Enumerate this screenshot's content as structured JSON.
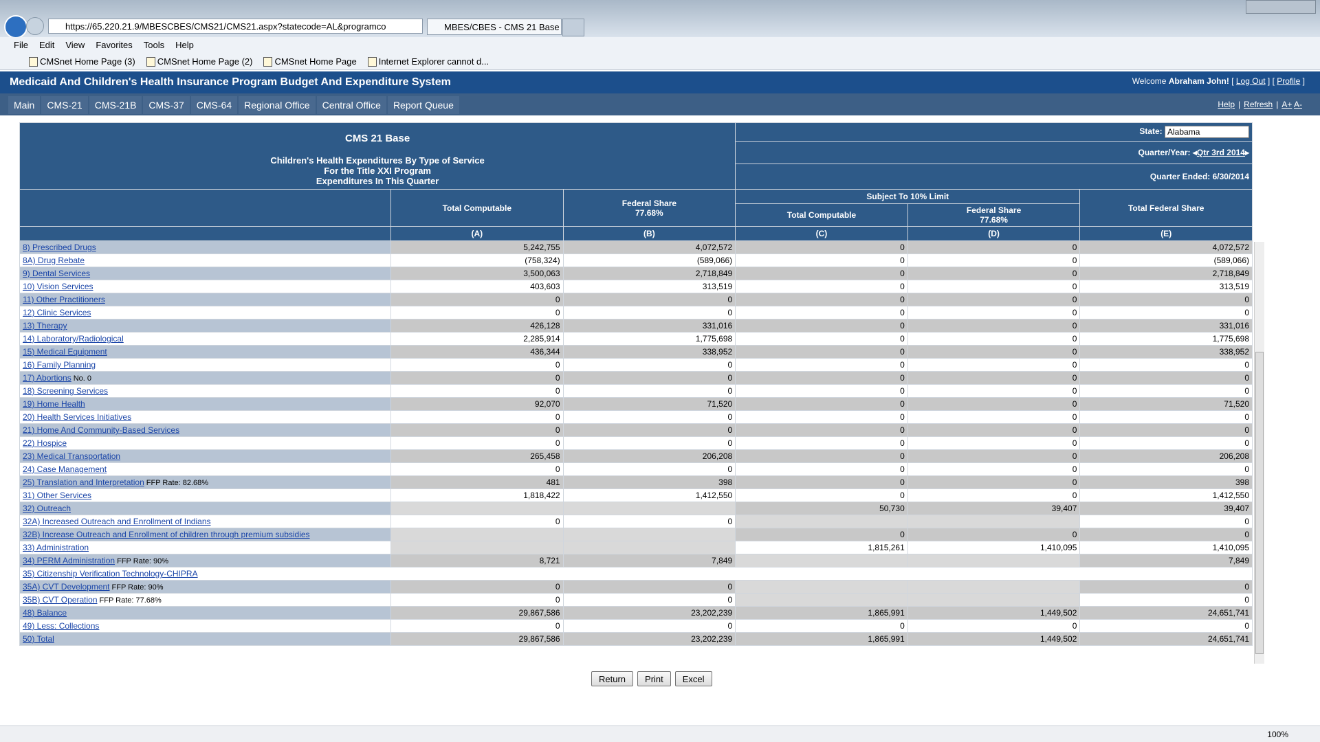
{
  "browser": {
    "url": "https://65.220.21.9/MBESCBES/CMS21/CMS21.aspx?statecode=AL&programco",
    "tab_title": "MBES/CBES - CMS 21 Base",
    "menu": [
      "File",
      "Edit",
      "View",
      "Favorites",
      "Tools",
      "Help"
    ],
    "favorites": [
      "CMSnet Home Page (3)",
      "CMSnet Home Page (2)",
      "CMSnet Home Page",
      "Internet Explorer cannot d..."
    ],
    "zoom": "100%"
  },
  "header": {
    "title": "Medicaid And Children's Health Insurance Program Budget And Expenditure System",
    "welcome": "Welcome",
    "user": "Abraham John!",
    "bracket_open": "[",
    "bracket_close": "]",
    "links": [
      "Log Out",
      "Profile"
    ]
  },
  "nav": {
    "items": [
      "Main",
      "CMS-21",
      "CMS-21B",
      "CMS-37",
      "CMS-64",
      "Regional Office",
      "Central Office",
      "Report Queue"
    ],
    "right_links": [
      "Help",
      "Refresh",
      "A+",
      "A-"
    ],
    "separator": "|"
  },
  "form": {
    "title": "CMS 21 Base",
    "subtitle_lines": [
      "Children's Health Expenditures By Type of Service",
      "For the Title XXI Program",
      "Expenditures In This Quarter"
    ],
    "state_label": "State:",
    "state": "Alabama",
    "quarter_label": "Quarter/Year:",
    "quarter": "Qtr 3rd 2014",
    "quarter_ended": "Quarter Ended: 6/30/2014"
  },
  "table": {
    "group_header": "Subject To 10% Limit",
    "columns": [
      {
        "title": "Total Computable",
        "letter": "(A)"
      },
      {
        "title": "Federal Share",
        "rate": "77.68%",
        "letter": "(B)"
      },
      {
        "title": "Total Computable",
        "letter": "(C)"
      },
      {
        "title": "Federal Share",
        "rate": "77.68%",
        "letter": "(D)"
      },
      {
        "title": "Total Federal Share",
        "letter": "(E)"
      }
    ],
    "rows": [
      {
        "label": "8) Prescribed Drugs",
        "cells": [
          "5,242,755",
          "4,072,572",
          "0",
          "0",
          "4,072,572"
        ]
      },
      {
        "label": "8A) Drug Rebate",
        "cells": [
          "(758,324)",
          "(589,066)",
          "0",
          "0",
          "(589,066)"
        ]
      },
      {
        "label": "9) Dental Services",
        "cells": [
          "3,500,063",
          "2,718,849",
          "0",
          "0",
          "2,718,849"
        ]
      },
      {
        "label": "10) Vision Services",
        "cells": [
          "403,603",
          "313,519",
          "0",
          "0",
          "313,519"
        ]
      },
      {
        "label": "11) Other Practitioners",
        "cells": [
          "0",
          "0",
          "0",
          "0",
          "0"
        ]
      },
      {
        "label": "12) Clinic Services",
        "cells": [
          "0",
          "0",
          "0",
          "0",
          "0"
        ]
      },
      {
        "label": "13) Therapy",
        "cells": [
          "426,128",
          "331,016",
          "0",
          "0",
          "331,016"
        ]
      },
      {
        "label": "14) Laboratory/Radiological",
        "cells": [
          "2,285,914",
          "1,775,698",
          "0",
          "0",
          "1,775,698"
        ]
      },
      {
        "label": "15) Medical Equipment",
        "cells": [
          "436,344",
          "338,952",
          "0",
          "0",
          "338,952"
        ]
      },
      {
        "label": "16) Family Planning",
        "cells": [
          "0",
          "0",
          "0",
          "0",
          "0"
        ]
      },
      {
        "label": "17) Abortions",
        "note": "No. 0",
        "cells": [
          "0",
          "0",
          "0",
          "0",
          "0"
        ]
      },
      {
        "label": "18) Screening Services",
        "cells": [
          "0",
          "0",
          "0",
          "0",
          "0"
        ]
      },
      {
        "label": "19) Home Health",
        "cells": [
          "92,070",
          "71,520",
          "0",
          "0",
          "71,520"
        ]
      },
      {
        "label": "20) Health Services Initiatives",
        "cells": [
          "0",
          "0",
          "0",
          "0",
          "0"
        ]
      },
      {
        "label": "21) Home And Community-Based Services",
        "cells": [
          "0",
          "0",
          "0",
          "0",
          "0"
        ]
      },
      {
        "label": "22) Hospice",
        "cells": [
          "0",
          "0",
          "0",
          "0",
          "0"
        ]
      },
      {
        "label": "23) Medical Transportation",
        "cells": [
          "265,458",
          "206,208",
          "0",
          "0",
          "206,208"
        ]
      },
      {
        "label": "24) Case Management",
        "cells": [
          "0",
          "0",
          "0",
          "0",
          "0"
        ]
      },
      {
        "label": "25) Translation and Interpretation",
        "note": "FFP Rate: 82.68%",
        "cells": [
          "481",
          "398",
          "0",
          "0",
          "398"
        ]
      },
      {
        "label": "31) Other Services",
        "cells": [
          "1,818,422",
          "1,412,550",
          "0",
          "0",
          "1,412,550"
        ]
      },
      {
        "label": "32) Outreach",
        "cells": [
          null,
          null,
          "50,730",
          "39,407",
          "39,407"
        ]
      },
      {
        "label": "32A) Increased Outreach and Enrollment of Indians",
        "cells": [
          "0",
          "0",
          null,
          null,
          "0"
        ]
      },
      {
        "label": "32B) Increase Outreach and Enrollment of children through premium subsidies",
        "cells": [
          null,
          null,
          "0",
          "0",
          "0"
        ]
      },
      {
        "label": "33) Administration",
        "cells": [
          null,
          null,
          "1,815,261",
          "1,410,095",
          "1,410,095"
        ]
      },
      {
        "label": "34) PERM Administration",
        "note": "FFP Rate: 90%",
        "cells": [
          "8,721",
          "7,849",
          null,
          null,
          "7,849"
        ]
      },
      {
        "label": "35) Citizenship Verification Technology-CHIPRA",
        "cells": [
          null,
          null,
          null,
          null,
          null
        ]
      },
      {
        "label": "35A) CVT Development",
        "note": "FFP Rate: 90%",
        "cells": [
          "0",
          "0",
          null,
          null,
          "0"
        ]
      },
      {
        "label": "35B) CVT Operation",
        "note": "FFP Rate: 77.68%",
        "cells": [
          "0",
          "0",
          null,
          null,
          "0"
        ]
      },
      {
        "label": "48) Balance",
        "cells": [
          "29,867,586",
          "23,202,239",
          "1,865,991",
          "1,449,502",
          "24,651,741"
        ]
      },
      {
        "label": "49) Less: Collections",
        "cells": [
          "0",
          "0",
          "0",
          "0",
          "0"
        ]
      },
      {
        "label": "50) Total",
        "cells": [
          "29,867,586",
          "23,202,239",
          "1,865,991",
          "1,449,502",
          "24,651,741"
        ]
      }
    ]
  },
  "buttons": [
    "Return",
    "Print",
    "Excel"
  ]
}
